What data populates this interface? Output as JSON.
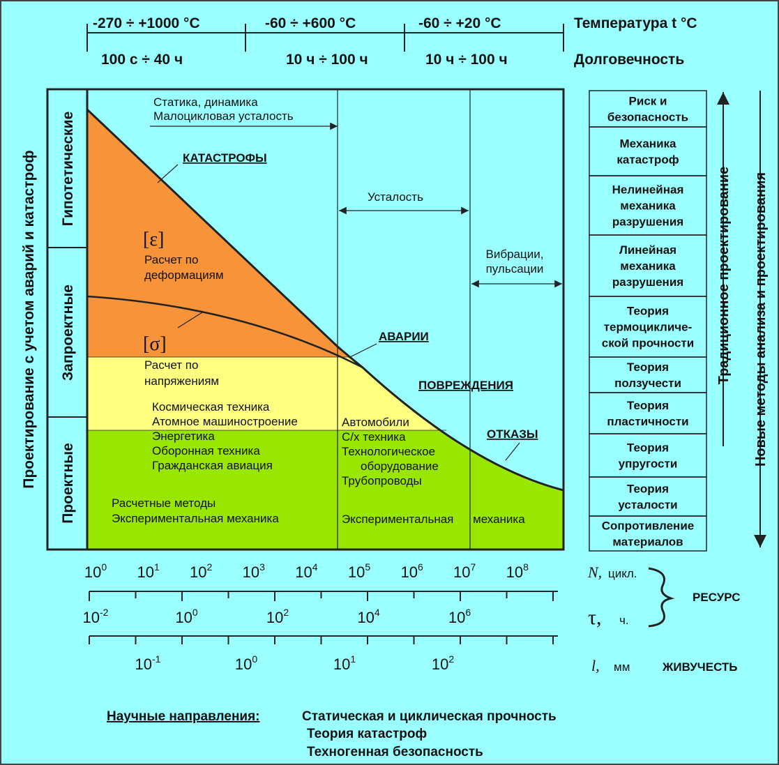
{
  "header": {
    "temperature": {
      "ranges": [
        "-270 ÷ +1000 °C",
        "-60  ÷  +600 °C",
        "-60  ÷  +20 °C"
      ],
      "label": "Температура t °C"
    },
    "durability": {
      "ranges": [
        "100 с  ÷  40 ч",
        "10 ч  ÷  100 ч",
        "10 ч  ÷  100 ч"
      ],
      "label": "Долговечность"
    }
  },
  "left": {
    "title": "Проектирование с учетом аварий и катастроф",
    "levels": [
      "Гипотетические",
      "Запроектные",
      "Проектные"
    ]
  },
  "plot": {
    "statics": [
      "Статика, динамика",
      "Малоцикловая усталость"
    ],
    "catastrophes": "КАТАСТРОФЫ",
    "eps": "[ε]",
    "deformation_calc": [
      "Расчет по",
      "деформациям"
    ],
    "sigma": "[σ]",
    "stress_calc": [
      "Расчет по",
      "напряжениям"
    ],
    "fatigue": "Усталость",
    "vibration": [
      "Вибрации,",
      "пульсации"
    ],
    "accidents": "АВАРИИ",
    "damage": "ПОВРЕЖДЕНИЯ",
    "failures": "ОТКАЗЫ",
    "applications_left": [
      "Космическая техника",
      "Атомное машиностроение",
      "Энергетика",
      "Оборонная техника",
      "Гражданская авиация"
    ],
    "applications_mid": [
      "Автомобили",
      "С/х техника",
      "Технологическое",
      "оборудование",
      "Трубопроводы"
    ],
    "methods": [
      "Расчетные методы",
      "Экспериментальная механика"
    ],
    "experimental": [
      "Экспериментальная",
      "механика"
    ]
  },
  "axes": {
    "base": "10",
    "cycles": {
      "symbol": "N,",
      "unit": "цикл.",
      "exponents": [
        "0",
        "1",
        "2",
        "3",
        "4",
        "5",
        "6",
        "7",
        "8"
      ]
    },
    "time": {
      "symbol": "τ,",
      "unit": "ч.",
      "exponents": [
        "-2",
        "0",
        "2",
        "4",
        "6"
      ]
    },
    "length": {
      "symbol": "l,",
      "unit": "мм",
      "exponents": [
        "-1",
        "0",
        "1",
        "2"
      ]
    },
    "resource": "РЕСУРС",
    "survivability": "ЖИВУЧЕСТЬ"
  },
  "right": {
    "boxes": [
      [
        "Риск и",
        "безопасность"
      ],
      [
        "Механика",
        "катастроф"
      ],
      [
        "Нелинейная",
        "механика",
        "разрушения"
      ],
      [
        "Линейная",
        "механика",
        "разрушения"
      ],
      [
        "Теория",
        "термоцикличе-",
        "ской прочности"
      ],
      [
        "Теория",
        "ползучести"
      ],
      [
        "Теория",
        "пластичности"
      ],
      [
        "Теория",
        "упругости"
      ],
      [
        "Теория",
        "усталости"
      ],
      [
        "Сопротивление",
        "материалов"
      ]
    ],
    "traditional": "Традиционное проектирование",
    "new_methods": "Новые методы анализа и проектирования"
  },
  "footer": {
    "label": "Научные направления:",
    "items": [
      "Статическая и циклическая прочность",
      "Теория катастроф",
      "Техногенная безопасность"
    ]
  }
}
